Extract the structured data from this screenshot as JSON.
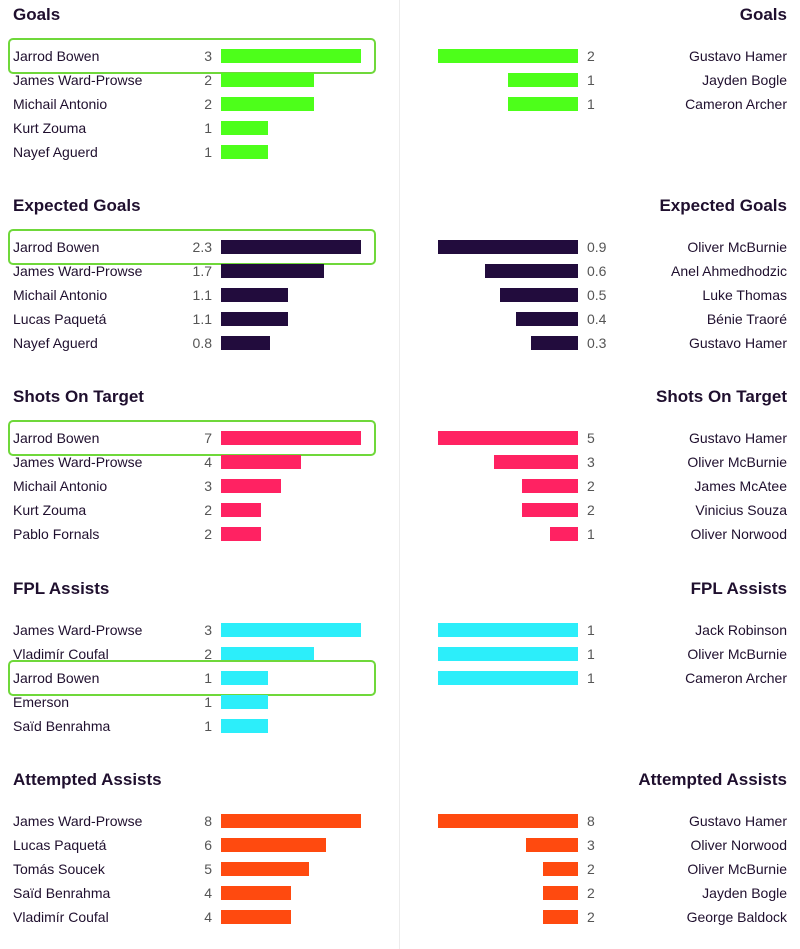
{
  "chart_data": [
    {
      "type": "bar",
      "title": "Goals",
      "color": "#4dff1a",
      "left": {
        "categories": [
          "Jarrod Bowen",
          "James Ward-Prowse",
          "Michail Antonio",
          "Kurt Zouma",
          "Nayef Aguerd"
        ],
        "values": [
          "3",
          "2",
          "2",
          "1",
          "1"
        ],
        "highlight": [
          0
        ]
      },
      "right": {
        "categories": [
          "Gustavo Hamer",
          "Jayden Bogle",
          "Cameron Archer"
        ],
        "values": [
          "2",
          "1",
          "1"
        ]
      }
    },
    {
      "type": "bar",
      "title": "Expected Goals",
      "color": "#220c3d",
      "left": {
        "categories": [
          "Jarrod Bowen",
          "James Ward-Prowse",
          "Michail Antonio",
          "Lucas Paquetá",
          "Nayef Aguerd"
        ],
        "values": [
          "2.3",
          "1.7",
          "1.1",
          "1.1",
          "0.8"
        ],
        "highlight": [
          0
        ]
      },
      "right": {
        "categories": [
          "Oliver McBurnie",
          "Anel Ahmedhodzic",
          "Luke Thomas",
          "Bénie Traoré",
          "Gustavo Hamer"
        ],
        "values": [
          "0.9",
          "0.6",
          "0.5",
          "0.4",
          "0.3"
        ]
      }
    },
    {
      "type": "bar",
      "title": "Shots On Target",
      "color": "#ff2262",
      "left": {
        "categories": [
          "Jarrod Bowen",
          "James Ward-Prowse",
          "Michail Antonio",
          "Kurt Zouma",
          "Pablo Fornals"
        ],
        "values": [
          "7",
          "4",
          "3",
          "2",
          "2"
        ],
        "highlight": [
          0
        ]
      },
      "right": {
        "categories": [
          "Gustavo Hamer",
          "Oliver McBurnie",
          "James McAtee",
          "Vinicius Souza",
          "Oliver Norwood"
        ],
        "values": [
          "5",
          "3",
          "2",
          "2",
          "1"
        ]
      }
    },
    {
      "type": "bar",
      "title": "FPL Assists",
      "color": "#2ceefa",
      "left": {
        "categories": [
          "James Ward-Prowse",
          "Vladimír Coufal",
          "Jarrod Bowen",
          "Emerson",
          "Saïd Benrahma"
        ],
        "values": [
          "3",
          "2",
          "1",
          "1",
          "1"
        ],
        "highlight": [
          2
        ]
      },
      "right": {
        "categories": [
          "Jack Robinson",
          "Oliver McBurnie",
          "Cameron Archer"
        ],
        "values": [
          "1",
          "1",
          "1"
        ]
      }
    },
    {
      "type": "bar",
      "title": "Attempted Assists",
      "color": "#ff4a0f",
      "left": {
        "categories": [
          "James Ward-Prowse",
          "Lucas Paquetá",
          "Tomás Soucek",
          "Saïd Benrahma",
          "Vladimír Coufal"
        ],
        "values": [
          "8",
          "6",
          "5",
          "4",
          "4"
        ],
        "highlight": []
      },
      "right": {
        "categories": [
          "Gustavo Hamer",
          "Oliver Norwood",
          "Oliver McBurnie",
          "Jayden Bogle",
          "George Baldock"
        ],
        "values": [
          "8",
          "3",
          "2",
          "2",
          "2"
        ]
      }
    }
  ]
}
